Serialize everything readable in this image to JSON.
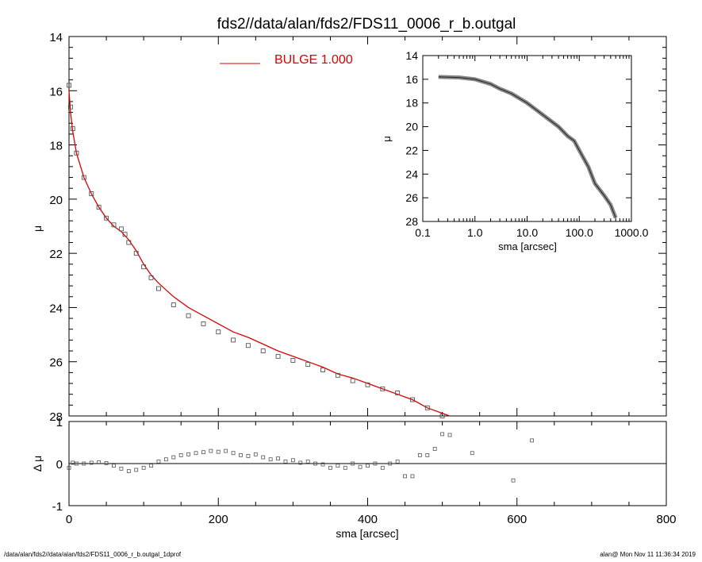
{
  "footer": {
    "path": "/data/alan/fds2//data/alan/fds2/FDS11_0006_r_b.outgal_1dprof",
    "stamp": "alan@  Mon Nov 11 11:36:34 2019"
  },
  "colors": {
    "model": "#dd0000",
    "data_marker": "#555555",
    "inset_band": "#888888",
    "axes": "#000000"
  },
  "chart_data": [
    {
      "id": "main",
      "type": "scatter",
      "title": "fds2//data/alan/fds2/FDS11_0006_r_b.outgal",
      "ylabel": "μ",
      "xlabel": "",
      "xlim": [
        0,
        800
      ],
      "ylim": [
        28,
        14
      ],
      "y_inverted": true,
      "yticks": [
        14,
        16,
        18,
        20,
        22,
        24,
        26,
        28
      ],
      "legend": {
        "placement": "top-center",
        "label": "BULGE  1.000"
      },
      "series": [
        {
          "name": "data",
          "kind": "profile_points",
          "x": [
            0,
            2,
            5,
            10,
            20,
            30,
            40,
            50,
            60,
            70,
            75,
            80,
            90,
            100,
            110,
            120,
            140,
            160,
            180,
            200,
            220,
            240,
            260,
            280,
            300,
            320,
            340,
            360,
            380,
            400,
            420,
            440,
            460,
            480,
            500
          ],
          "y": [
            15.8,
            16.6,
            17.4,
            18.3,
            19.2,
            19.8,
            20.3,
            20.7,
            20.95,
            21.1,
            21.3,
            21.6,
            22.0,
            22.5,
            22.9,
            23.3,
            23.9,
            24.3,
            24.6,
            24.9,
            25.2,
            25.4,
            25.6,
            25.8,
            25.95,
            26.1,
            26.3,
            26.5,
            26.7,
            26.85,
            27.0,
            27.15,
            27.4,
            27.7,
            28.0
          ]
        },
        {
          "name": "BULGE  1.000",
          "kind": "model_line",
          "x": [
            0,
            2,
            5,
            10,
            20,
            30,
            40,
            50,
            60,
            70,
            80,
            90,
            100,
            110,
            120,
            140,
            160,
            180,
            200,
            220,
            240,
            260,
            280,
            300,
            320,
            340,
            360,
            380,
            400,
            420,
            440,
            460,
            480,
            500,
            510
          ],
          "y": [
            16.0,
            16.8,
            17.5,
            18.3,
            19.2,
            19.8,
            20.3,
            20.7,
            21.0,
            21.2,
            21.5,
            21.9,
            22.4,
            22.8,
            23.1,
            23.6,
            24.0,
            24.3,
            24.6,
            24.9,
            25.1,
            25.35,
            25.6,
            25.8,
            26.0,
            26.2,
            26.45,
            26.6,
            26.8,
            27.0,
            27.2,
            27.4,
            27.7,
            27.9,
            28.0
          ]
        }
      ]
    },
    {
      "id": "residual",
      "type": "scatter",
      "ylabel": "Δ μ",
      "xlabel": "sma [arcsec]",
      "xlim": [
        0,
        800
      ],
      "ylim": [
        -1,
        1
      ],
      "xticks": [
        0,
        200,
        400,
        600,
        800
      ],
      "yticks": [
        -1,
        0,
        1
      ],
      "series": [
        {
          "name": "residual",
          "kind": "profile_points",
          "x": [
            0,
            5,
            10,
            20,
            30,
            40,
            50,
            60,
            70,
            80,
            90,
            100,
            110,
            120,
            130,
            140,
            150,
            160,
            170,
            180,
            190,
            200,
            210,
            220,
            230,
            240,
            250,
            260,
            270,
            280,
            290,
            300,
            310,
            320,
            330,
            340,
            350,
            360,
            370,
            380,
            390,
            400,
            410,
            420,
            430,
            440,
            450,
            460,
            470,
            480,
            490,
            500,
            510,
            540,
            595,
            620
          ],
          "y": [
            -0.1,
            0.02,
            0.0,
            0.0,
            0.02,
            0.03,
            0.01,
            -0.05,
            -0.12,
            -0.18,
            -0.15,
            -0.1,
            -0.05,
            0.05,
            0.1,
            0.15,
            0.2,
            0.22,
            0.25,
            0.27,
            0.3,
            0.28,
            0.3,
            0.25,
            0.2,
            0.18,
            0.22,
            0.15,
            0.1,
            0.12,
            0.05,
            0.08,
            0.02,
            0.05,
            0.0,
            -0.02,
            -0.1,
            -0.05,
            -0.1,
            0.0,
            -0.08,
            -0.05,
            0.0,
            -0.1,
            0.0,
            0.05,
            -0.3,
            -0.3,
            0.2,
            0.2,
            0.35,
            0.7,
            0.68,
            0.25,
            -0.4,
            0.55
          ]
        }
      ]
    },
    {
      "id": "inset",
      "type": "line",
      "ylabel": "μ",
      "xlabel": "sma [arcsec]",
      "xscale": "log",
      "xlim": [
        0.1,
        1000
      ],
      "ylim": [
        28,
        14
      ],
      "y_inverted": true,
      "xticks": [
        "0.1",
        "1.0",
        "10.0",
        "100.0",
        "1000.0"
      ],
      "yticks": [
        14,
        16,
        18,
        20,
        22,
        24,
        26,
        28
      ],
      "series": [
        {
          "name": "profile",
          "kind": "band_line",
          "x": [
            0.2,
            0.5,
            1,
            2,
            3,
            5,
            10,
            20,
            40,
            60,
            80,
            100,
            150,
            200,
            300,
            400,
            500
          ],
          "y": [
            15.8,
            15.85,
            16.0,
            16.4,
            16.8,
            17.2,
            18.0,
            19.0,
            20.0,
            20.8,
            21.2,
            22.0,
            23.4,
            24.8,
            25.8,
            26.6,
            27.7
          ]
        }
      ]
    }
  ]
}
